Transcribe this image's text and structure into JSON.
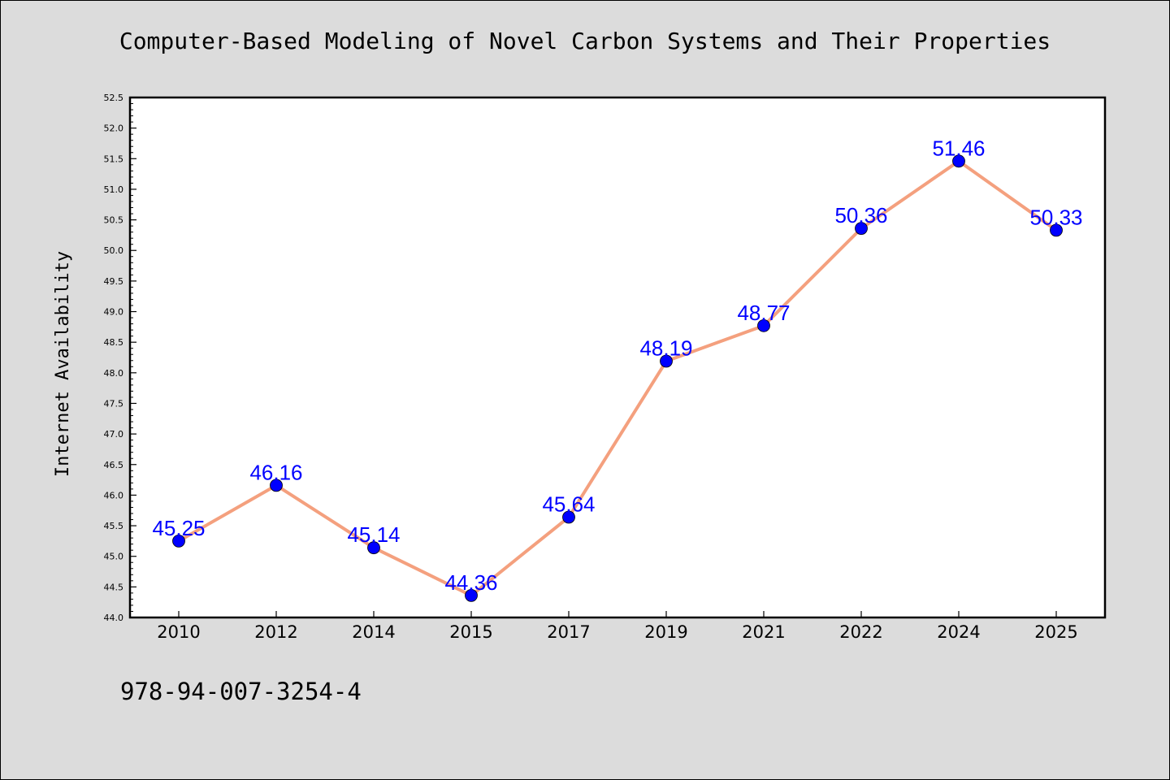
{
  "chart_data": {
    "type": "line",
    "title": "Computer-Based Modeling of Novel Carbon Systems and Their Properties",
    "xlabel": "",
    "ylabel": "Internet Availability",
    "categories": [
      "2010",
      "2012",
      "2014",
      "2015",
      "2017",
      "2019",
      "2021",
      "2022",
      "2024",
      "2025"
    ],
    "values": [
      45.25,
      46.16,
      45.14,
      44.36,
      45.64,
      48.19,
      48.77,
      50.36,
      51.46,
      50.33
    ],
    "data_labels": [
      "45.25",
      "46.16",
      "45.14",
      "44.36",
      "45.64",
      "48.19",
      "48.77",
      "50.36",
      "51.46",
      "50.33"
    ],
    "ylim": [
      44.0,
      52.5
    ],
    "ytick_step": 0.5,
    "grid": false,
    "line_color": "#f4a07e",
    "marker_color": "#0000ff",
    "label_color": "#0000ff"
  },
  "footer": {
    "code": "978-94-007-3254-4"
  }
}
